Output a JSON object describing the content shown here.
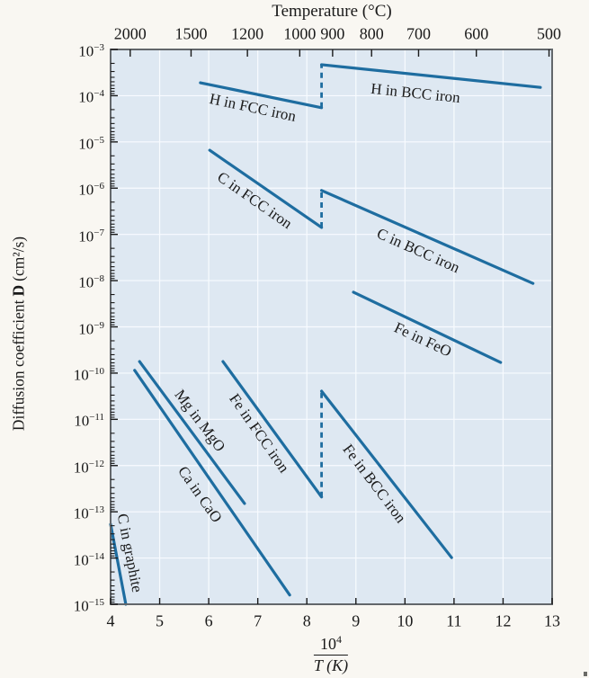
{
  "chart_data": {
    "type": "line",
    "title": "Temperature (°C)",
    "top_axis": {
      "label": "Temperature (°C)",
      "ticks": [
        2000,
        1500,
        1200,
        1000,
        900,
        800,
        700,
        600,
        500
      ]
    },
    "x_axis": {
      "min": 4,
      "max": 13,
      "ticks": [
        4,
        5,
        6,
        7,
        8,
        9,
        10,
        11,
        12,
        13
      ]
    },
    "y_axis": {
      "exponents": [
        -3,
        -4,
        -5,
        -6,
        -7,
        -8,
        -9,
        -10,
        -11,
        -12,
        -13,
        -14,
        -15
      ],
      "scale": "log"
    },
    "ylabel": {
      "prefix": "Diffusion coefficient",
      "bold": "D",
      "suffix": "(cm²/s)"
    },
    "xlabel": {
      "num_base": "10",
      "num_exp": "4",
      "denominator": "T (K)"
    },
    "grid": true,
    "colors": {
      "line": "#1e6da0",
      "plot_bg": "#dee8f2",
      "grid": "#f8fbff",
      "frame": "#63676b",
      "tick": "#1a1a1a",
      "page_bg": "#f9f7f2",
      "text": "#1a1a1a"
    },
    "series": [
      {
        "name": "H in FCC iron",
        "points": [
          [
            5.83,
            -3.72
          ],
          [
            8.3,
            -4.26
          ]
        ],
        "label": {
          "text": "H in FCC iron",
          "x": 6.9,
          "logD": -4.27,
          "angle": 12
        }
      },
      {
        "name": "H in BCC iron",
        "points": [
          [
            8.3,
            -3.33
          ],
          [
            12.76,
            -3.82
          ]
        ],
        "label": {
          "text": "H in BCC iron",
          "x": 10.21,
          "logD": -3.95,
          "angle": 6
        }
      },
      {
        "name": "C in FCC iron",
        "points": [
          [
            6.02,
            -5.18
          ],
          [
            8.3,
            -6.85
          ]
        ],
        "label": {
          "text": "C in FCC iron",
          "x": 6.93,
          "logD": -6.27,
          "angle": 35
        }
      },
      {
        "name": "C in BCC iron",
        "points": [
          [
            8.3,
            -6.05
          ],
          [
            12.61,
            -8.06
          ]
        ],
        "label": {
          "text": "C in BCC iron",
          "x": 10.27,
          "logD": -7.36,
          "angle": 24
        }
      },
      {
        "name": "Fe in FeO",
        "points": [
          [
            8.95,
            -8.25
          ],
          [
            11.95,
            -9.77
          ]
        ],
        "label": {
          "text": "Fe in FeO",
          "x": 10.36,
          "logD": -9.28,
          "angle": 25
        }
      },
      {
        "name": "Fe in FCC iron",
        "points": [
          [
            6.29,
            -9.75
          ],
          [
            8.3,
            -12.68
          ]
        ],
        "label": {
          "text": "Fe in FCC iron",
          "x": 7.02,
          "logD": -11.31,
          "angle": 55
        }
      },
      {
        "name": "Fe in BCC iron",
        "points": [
          [
            8.3,
            -10.39
          ],
          [
            10.95,
            -13.99
          ]
        ],
        "label": {
          "text": "Fe in BCC iron",
          "x": 9.37,
          "logD": -12.39,
          "angle": 53
        }
      },
      {
        "name": "Mg in MgO",
        "points": [
          [
            4.59,
            -9.75
          ],
          [
            6.73,
            -12.82
          ]
        ],
        "label": {
          "text": "Mg in MgO",
          "x": 5.81,
          "logD": -11.03,
          "angle": 53
        }
      },
      {
        "name": "Ca in CaO",
        "points": [
          [
            4.49,
            -9.94
          ],
          [
            7.65,
            -14.8
          ]
        ],
        "label": {
          "text": "Ca in CaO",
          "x": 5.81,
          "logD": -12.63,
          "angle": 55
        }
      },
      {
        "name": "C in graphite",
        "points": [
          [
            4.0,
            -13.27
          ],
          [
            4.31,
            -15.0
          ]
        ],
        "label": {
          "text": "C in graphite",
          "x": 4.38,
          "logD": -13.89,
          "angle": 79
        }
      }
    ],
    "dashed_connectors": [
      {
        "series": "H",
        "x": 8.3,
        "from": -4.26,
        "to": -3.33
      },
      {
        "series": "C",
        "x": 8.3,
        "from": -6.85,
        "to": -6.05
      },
      {
        "series": "Fe",
        "x": 8.3,
        "from": -12.68,
        "to": -10.39
      }
    ]
  }
}
